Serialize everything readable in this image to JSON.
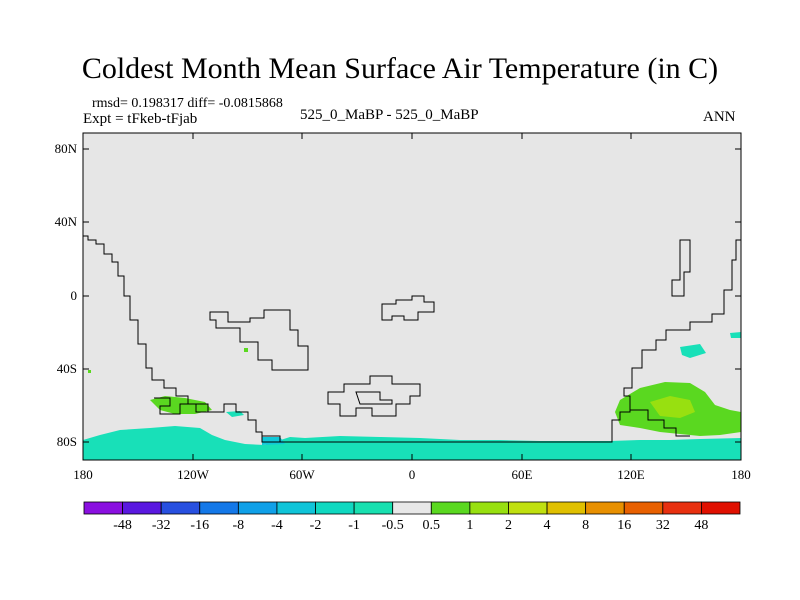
{
  "title": "Coldest Month Mean Surface Air Temperature (in C)",
  "stats_line": "rmsd= 0.198317 diff= -0.0815868",
  "expt_line": "Expt = tFkeb-tFjab",
  "center_label": "525_0_MaBP - 525_0_MaBP",
  "right_label": "ANN",
  "y_ticks": [
    "80N",
    "40N",
    "0",
    "40S",
    "80S"
  ],
  "x_ticks": [
    "180",
    "120W",
    "60W",
    "0",
    "60E",
    "120E",
    "180"
  ],
  "colorbar": {
    "labels": [
      "-48",
      "-32",
      "-16",
      "-8",
      "-4",
      "-2",
      "-1",
      "-0.5",
      "0.5",
      "1",
      "2",
      "4",
      "8",
      "16",
      "32",
      "48"
    ],
    "colors": [
      "#8a10e0",
      "#5a18e0",
      "#2850e0",
      "#1478e8",
      "#10a0e8",
      "#10c4d8",
      "#10d8c0",
      "#18e0b0",
      "#e8e8e8",
      "#5ad820",
      "#98e010",
      "#c0e010",
      "#e0c000",
      "#e89000",
      "#e86000",
      "#e83010",
      "#e01000"
    ]
  },
  "map_colors": {
    "background": "#e6e6e6",
    "cool": "#18e0b8",
    "cooler": "#10c8d8",
    "warm1": "#5ad820",
    "warm2": "#98e010"
  }
}
